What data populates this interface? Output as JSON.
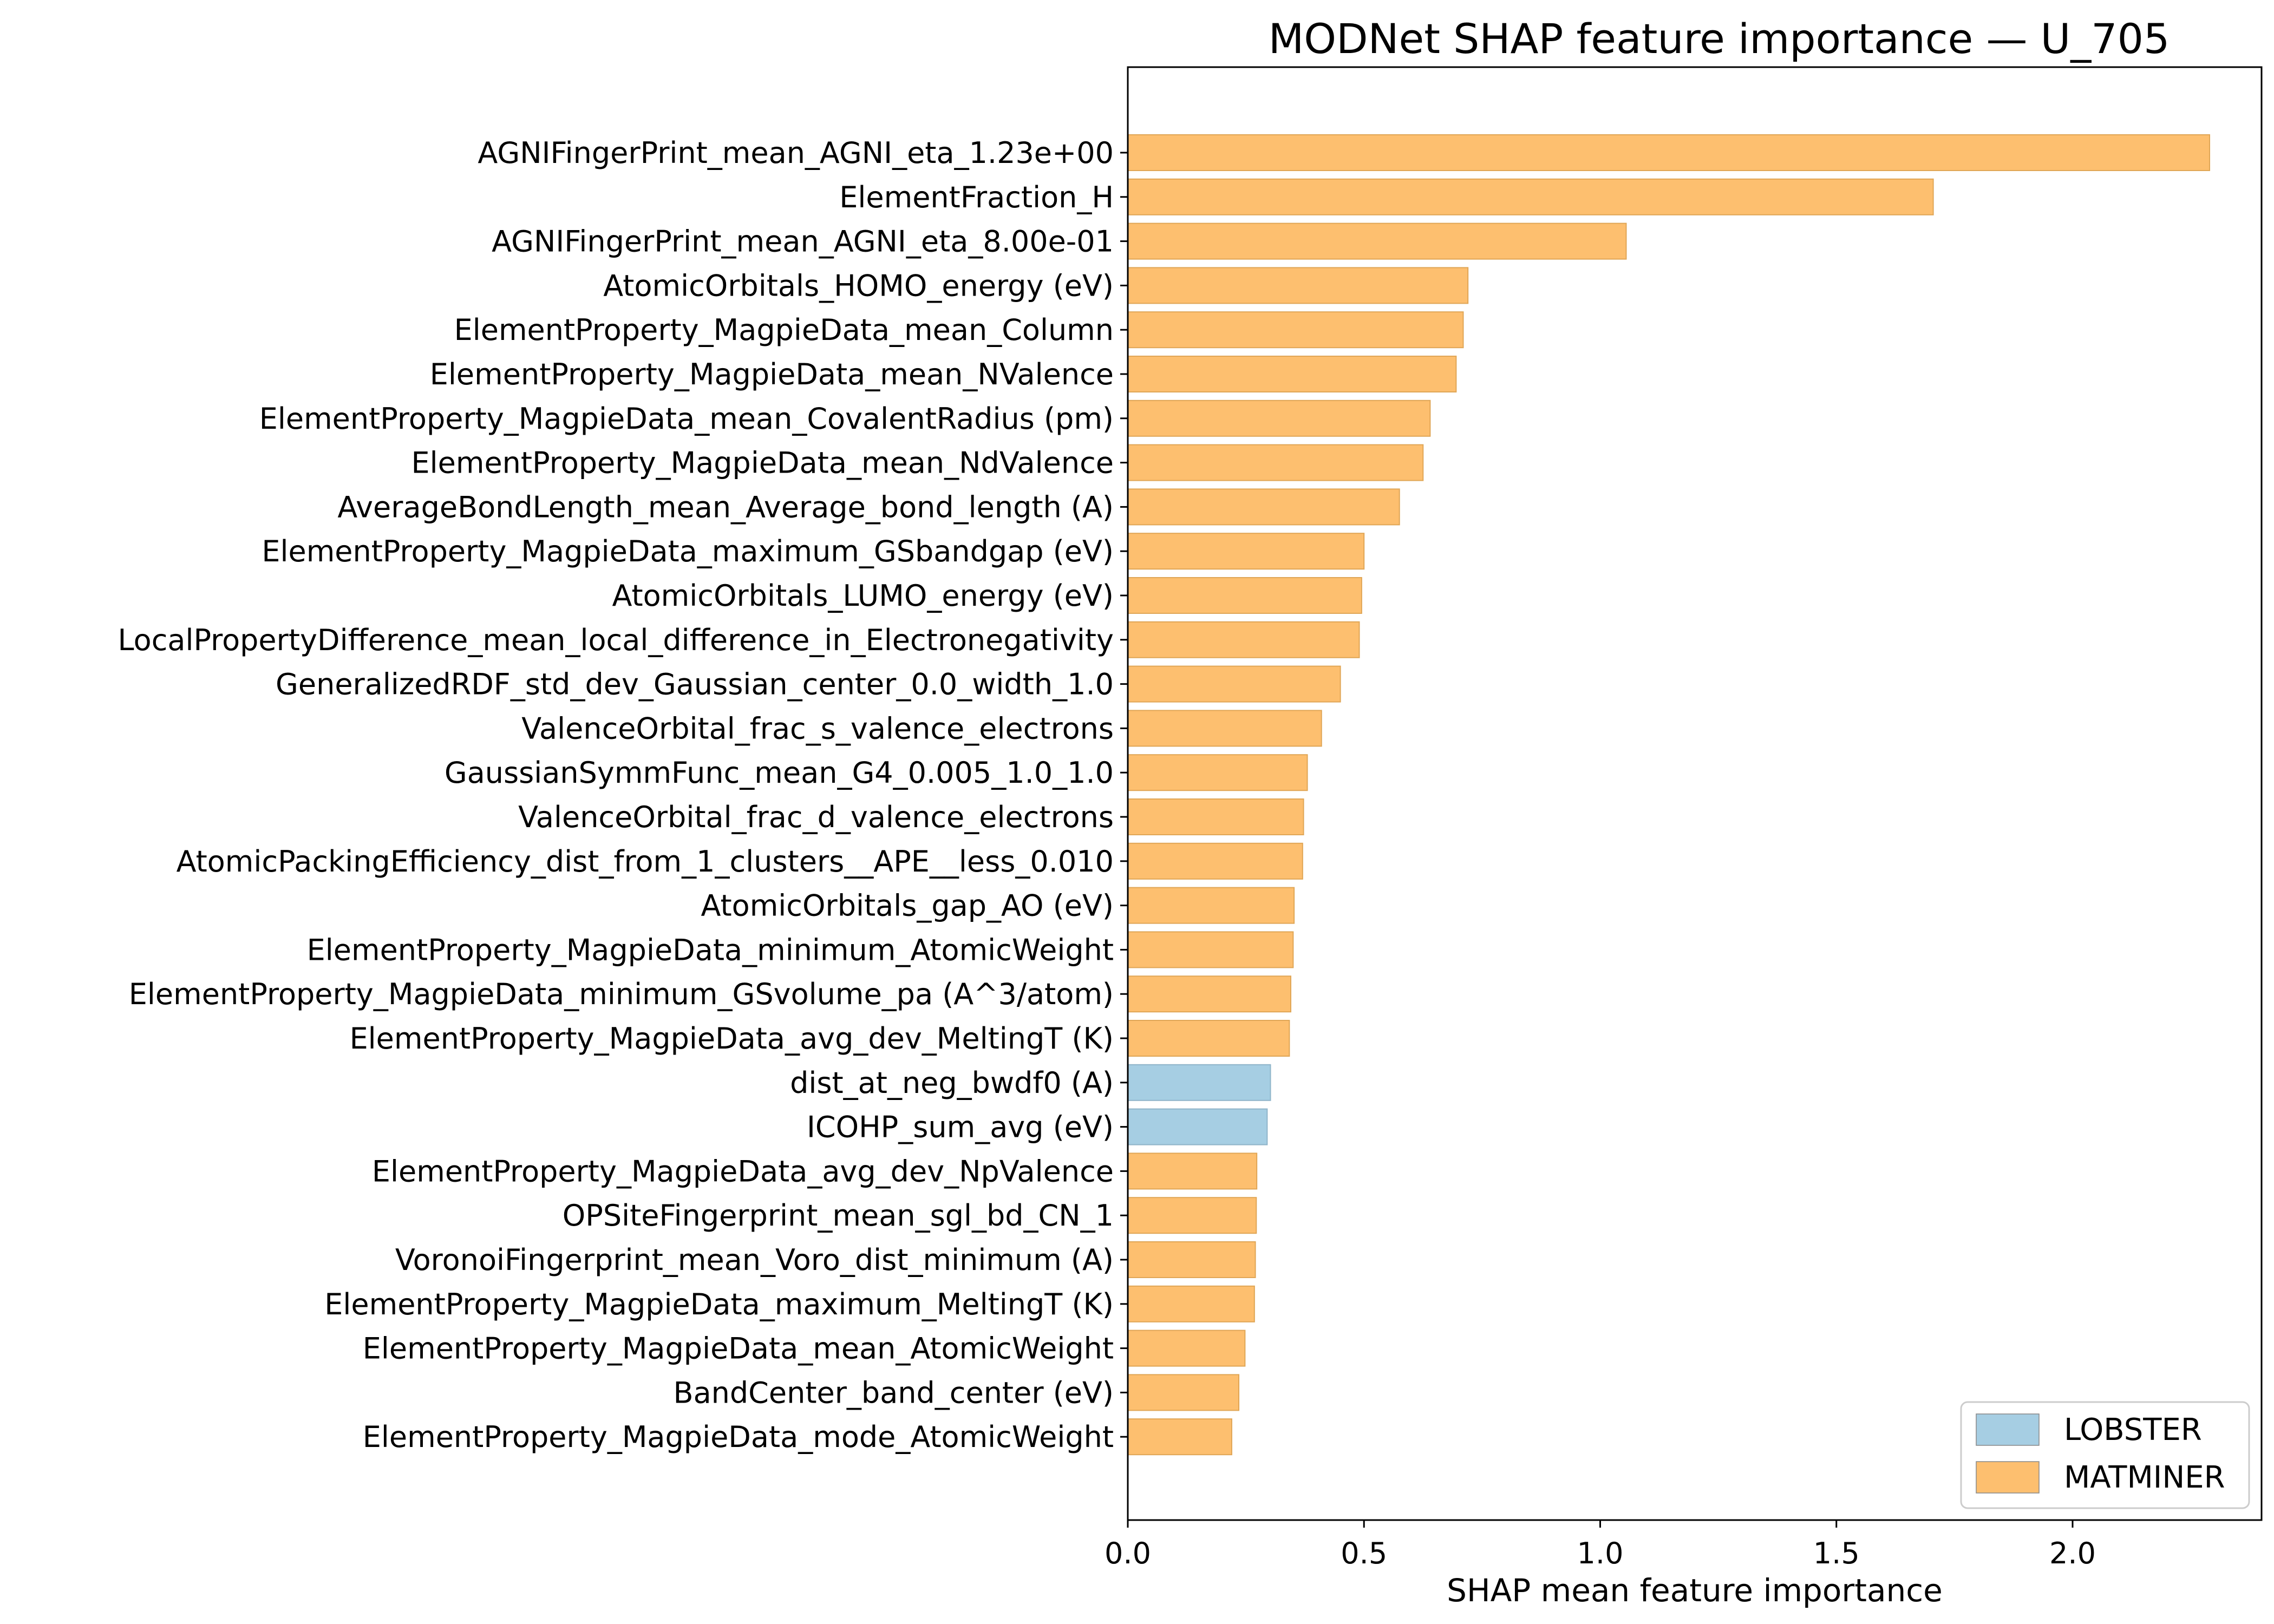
{
  "chart_data": {
    "type": "bar",
    "orientation": "horizontal",
    "title": "MODNet SHAP feature importance — U_705",
    "xlabel": "SHAP mean feature importance",
    "ylabel": "",
    "xlim": [
      0,
      2.4
    ],
    "xticks": [
      0.0,
      0.5,
      1.0,
      1.5,
      2.0
    ],
    "xtick_labels": [
      "0.0",
      "0.5",
      "1.0",
      "1.5",
      "2.0"
    ],
    "grid": false,
    "legend_position": "bottom-right",
    "legend": [
      {
        "label": "LOBSTER",
        "color": "#a6cee3"
      },
      {
        "label": "MATMINER",
        "color": "#fdbf6f"
      }
    ],
    "bars": [
      {
        "label": "AGNIFingerPrint_mean_AGNI_eta_1.23e+00",
        "value": 2.29,
        "group": "MATMINER"
      },
      {
        "label": "ElementFraction_H",
        "value": 1.705,
        "group": "MATMINER"
      },
      {
        "label": "AGNIFingerPrint_mean_AGNI_eta_8.00e-01",
        "value": 1.055,
        "group": "MATMINER"
      },
      {
        "label": "AtomicOrbitals_HOMO_energy (eV)",
        "value": 0.72,
        "group": "MATMINER"
      },
      {
        "label": "ElementProperty_MagpieData_mean_Column",
        "value": 0.71,
        "group": "MATMINER"
      },
      {
        "label": "ElementProperty_MagpieData_mean_NValence",
        "value": 0.695,
        "group": "MATMINER"
      },
      {
        "label": "ElementProperty_MagpieData_mean_CovalentRadius (pm)",
        "value": 0.64,
        "group": "MATMINER"
      },
      {
        "label": "ElementProperty_MagpieData_mean_NdValence",
        "value": 0.625,
        "group": "MATMINER"
      },
      {
        "label": "AverageBondLength_mean_Average_bond_length (A)",
        "value": 0.575,
        "group": "MATMINER"
      },
      {
        "label": "ElementProperty_MagpieData_maximum_GSbandgap (eV)",
        "value": 0.5,
        "group": "MATMINER"
      },
      {
        "label": "AtomicOrbitals_LUMO_energy (eV)",
        "value": 0.495,
        "group": "MATMINER"
      },
      {
        "label": "LocalPropertyDifference_mean_local_difference_in_Electronegativity",
        "value": 0.49,
        "group": "MATMINER"
      },
      {
        "label": "GeneralizedRDF_std_dev_Gaussian_center_0.0_width_1.0",
        "value": 0.45,
        "group": "MATMINER"
      },
      {
        "label": "ValenceOrbital_frac_s_valence_electrons",
        "value": 0.41,
        "group": "MATMINER"
      },
      {
        "label": "GaussianSymmFunc_mean_G4_0.005_1.0_1.0",
        "value": 0.38,
        "group": "MATMINER"
      },
      {
        "label": "ValenceOrbital_frac_d_valence_electrons",
        "value": 0.372,
        "group": "MATMINER"
      },
      {
        "label": "AtomicPackingEfficiency_dist_from_1_clusters__APE__less_0.010",
        "value": 0.37,
        "group": "MATMINER"
      },
      {
        "label": "AtomicOrbitals_gap_AO (eV)",
        "value": 0.352,
        "group": "MATMINER"
      },
      {
        "label": "ElementProperty_MagpieData_minimum_AtomicWeight",
        "value": 0.35,
        "group": "MATMINER"
      },
      {
        "label": "ElementProperty_MagpieData_minimum_GSvolume_pa (A^3/atom)",
        "value": 0.345,
        "group": "MATMINER"
      },
      {
        "label": "ElementProperty_MagpieData_avg_dev_MeltingT (K)",
        "value": 0.342,
        "group": "MATMINER"
      },
      {
        "label": "dist_at_neg_bwdf0 (A)",
        "value": 0.302,
        "group": "LOBSTER"
      },
      {
        "label": "ICOHP_sum_avg (eV)",
        "value": 0.295,
        "group": "LOBSTER"
      },
      {
        "label": "ElementProperty_MagpieData_avg_dev_NpValence",
        "value": 0.273,
        "group": "MATMINER"
      },
      {
        "label": "OPSiteFingerprint_mean_sgl_bd_CN_1",
        "value": 0.272,
        "group": "MATMINER"
      },
      {
        "label": "VoronoiFingerprint_mean_Voro_dist_minimum (A)",
        "value": 0.27,
        "group": "MATMINER"
      },
      {
        "label": "ElementProperty_MagpieData_maximum_MeltingT (K)",
        "value": 0.268,
        "group": "MATMINER"
      },
      {
        "label": "ElementProperty_MagpieData_mean_AtomicWeight",
        "value": 0.248,
        "group": "MATMINER"
      },
      {
        "label": "BandCenter_band_center (eV)",
        "value": 0.235,
        "group": "MATMINER"
      },
      {
        "label": "ElementProperty_MagpieData_mode_AtomicWeight",
        "value": 0.22,
        "group": "MATMINER"
      }
    ]
  }
}
